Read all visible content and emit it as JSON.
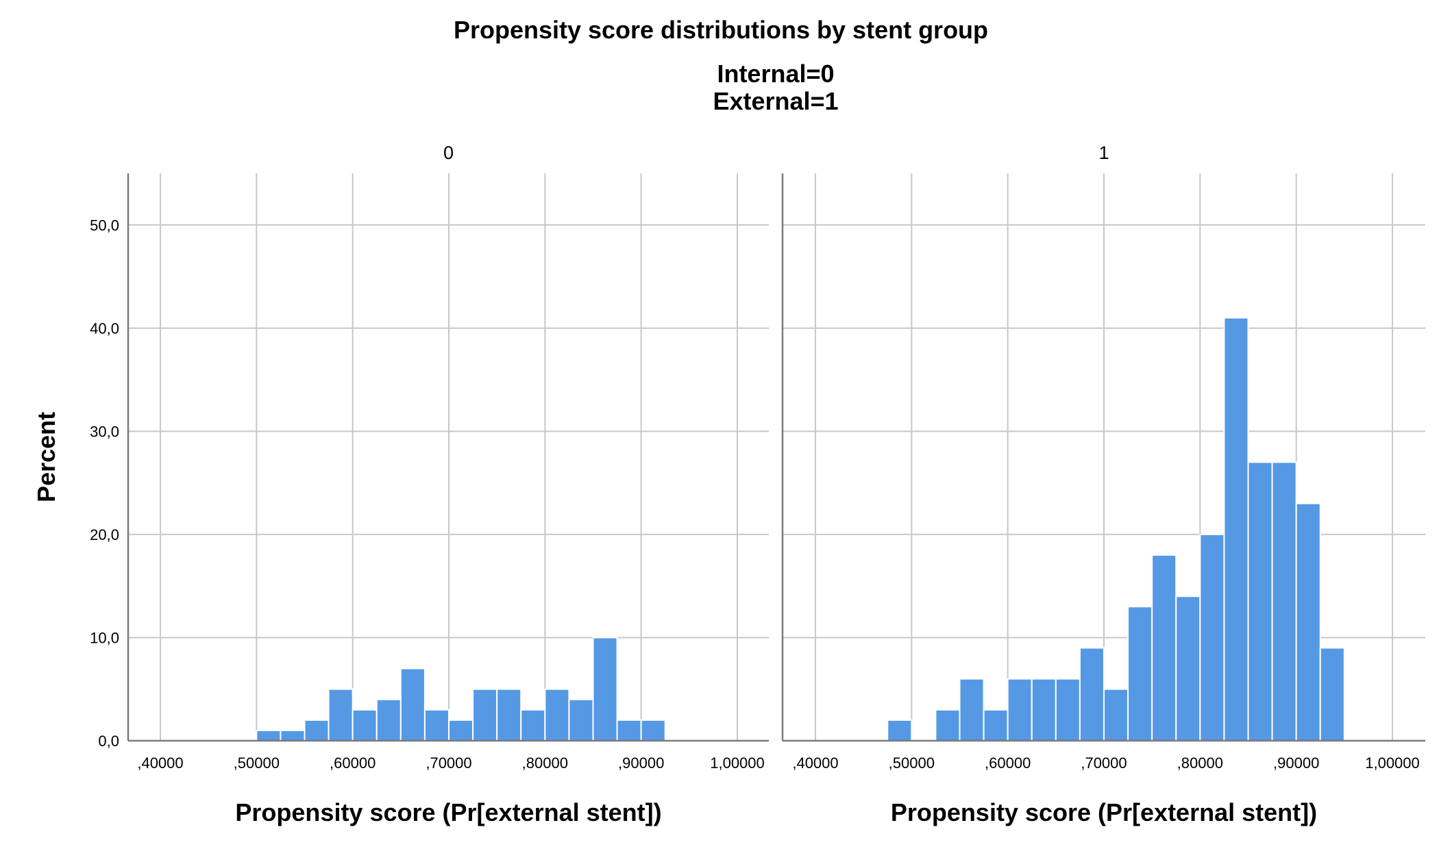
{
  "chart_data": {
    "type": "bar",
    "title": "Propensity score distributions by stent group",
    "subtitle_lines": [
      "Internal=0",
      "External=1"
    ],
    "ylabel": "Percent",
    "xlabel": "Propensity score (Pr[external stent])",
    "ylim": [
      0,
      55
    ],
    "xlim": [
      0.4,
      1.0
    ],
    "y_ticks": [
      0,
      10,
      20,
      30,
      40,
      50
    ],
    "y_tick_labels": [
      "0,0",
      "10,0",
      "20,0",
      "30,0",
      "40,0",
      "50,0"
    ],
    "x_ticks": [
      0.4,
      0.5,
      0.6,
      0.7,
      0.8,
      0.9,
      1.0
    ],
    "x_tick_labels": [
      ",40000",
      ",50000",
      ",60000",
      ",70000",
      ",80000",
      ",90000",
      "1,00000"
    ],
    "grid": true,
    "bar_color": "#5599e5",
    "bin_width": 0.025,
    "panels": [
      {
        "label": "0",
        "bins": [
          {
            "x0": 0.5,
            "value": 1
          },
          {
            "x0": 0.525,
            "value": 1
          },
          {
            "x0": 0.55,
            "value": 2
          },
          {
            "x0": 0.575,
            "value": 5
          },
          {
            "x0": 0.6,
            "value": 3
          },
          {
            "x0": 0.625,
            "value": 4
          },
          {
            "x0": 0.65,
            "value": 7
          },
          {
            "x0": 0.675,
            "value": 3
          },
          {
            "x0": 0.7,
            "value": 2
          },
          {
            "x0": 0.725,
            "value": 5
          },
          {
            "x0": 0.75,
            "value": 5
          },
          {
            "x0": 0.775,
            "value": 3
          },
          {
            "x0": 0.8,
            "value": 5
          },
          {
            "x0": 0.825,
            "value": 4
          },
          {
            "x0": 0.85,
            "value": 10
          },
          {
            "x0": 0.875,
            "value": 2
          },
          {
            "x0": 0.9,
            "value": 2
          }
        ]
      },
      {
        "label": "1",
        "bins": [
          {
            "x0": 0.475,
            "value": 2
          },
          {
            "x0": 0.525,
            "value": 3
          },
          {
            "x0": 0.55,
            "value": 6
          },
          {
            "x0": 0.575,
            "value": 3
          },
          {
            "x0": 0.6,
            "value": 6
          },
          {
            "x0": 0.625,
            "value": 6
          },
          {
            "x0": 0.65,
            "value": 6
          },
          {
            "x0": 0.675,
            "value": 9
          },
          {
            "x0": 0.7,
            "value": 5
          },
          {
            "x0": 0.725,
            "value": 13
          },
          {
            "x0": 0.75,
            "value": 18
          },
          {
            "x0": 0.775,
            "value": 14
          },
          {
            "x0": 0.8,
            "value": 20
          },
          {
            "x0": 0.825,
            "value": 41
          },
          {
            "x0": 0.85,
            "value": 27
          },
          {
            "x0": 0.875,
            "value": 27
          },
          {
            "x0": 0.9,
            "value": 23
          },
          {
            "x0": 0.925,
            "value": 9
          }
        ]
      }
    ]
  }
}
